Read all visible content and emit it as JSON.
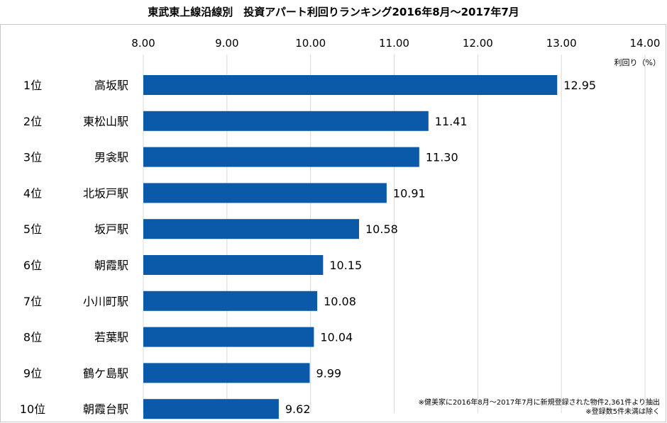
{
  "chart_data": {
    "type": "bar",
    "orientation": "horizontal",
    "title": "東武東上線沿線別　投資アパート利回りランキング2016年8月～2017年7月",
    "unit_label": "利回り（%）",
    "ranks": [
      "1位",
      "2位",
      "3位",
      "4位",
      "5位",
      "6位",
      "7位",
      "8位",
      "9位",
      "10位"
    ],
    "categories": [
      "高坂駅",
      "東松山駅",
      "男衾駅",
      "北坂戸駅",
      "坂戸駅",
      "朝霞駅",
      "小川町駅",
      "若葉駅",
      "鶴ケ島駅",
      "朝霞台駅"
    ],
    "values": [
      12.95,
      11.41,
      11.3,
      10.91,
      10.58,
      10.15,
      10.08,
      10.04,
      9.99,
      9.62
    ],
    "value_labels": [
      "12.95",
      "11.41",
      "11.30",
      "10.91",
      "10.58",
      "10.15",
      "10.08",
      "10.04",
      "9.99",
      "9.62"
    ],
    "xlim": [
      8.0,
      14.0
    ],
    "ticks": [
      "8.00",
      "9.00",
      "10.00",
      "11.00",
      "12.00",
      "13.00",
      "14.00"
    ],
    "grid": true,
    "bar_color": "#0b5aa9",
    "grid_color": "#d9d9d9",
    "notes": [
      "※健美家に2016年8月～2017年7月に新規登録された物件2,361件より抽出",
      "※登録数5件未満は除く"
    ]
  }
}
